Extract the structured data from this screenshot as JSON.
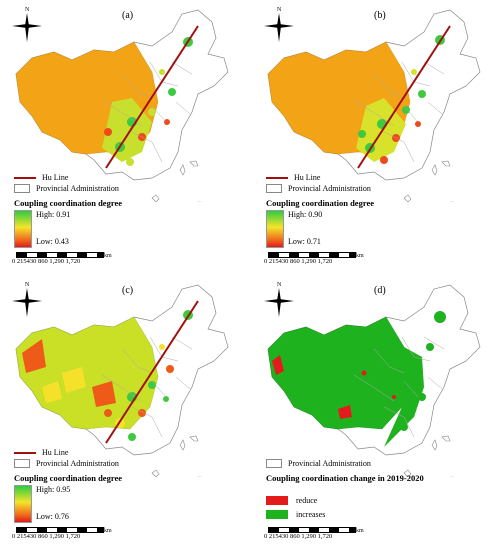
{
  "north_label": "N",
  "panels": {
    "a": {
      "letter": "(a)",
      "hu_line": "Hu Line",
      "admin": "Provincial Administration",
      "legend_title": "Coupling coordination degree",
      "high": "High: 0.91",
      "low": "Low: 0.43",
      "colors": {
        "west": "#f3a316",
        "high": "#3ec93e",
        "mid": "#c8df2d",
        "low": "#ee4a1a"
      }
    },
    "b": {
      "letter": "(b)",
      "hu_line": "Hu Line",
      "admin": "Provincial Administration",
      "legend_title": "Coupling coordination degree",
      "high": "High: 0.90",
      "low": "Low: 0.71",
      "colors": {
        "west": "#f3a316",
        "high": "#3ec93e",
        "mid": "#d8e22a",
        "low": "#ee4a1a"
      }
    },
    "c": {
      "letter": "(c)",
      "hu_line": "Hu Line",
      "admin": "Provincial Administration",
      "legend_title": "Coupling coordination degree",
      "high": "High: 0.95",
      "low": "Low: 0.76",
      "colors": {
        "west": "#c9e027",
        "high": "#3ec93e",
        "mid": "#f5e12a",
        "low": "#ee5a18"
      }
    },
    "d": {
      "letter": "(d)",
      "admin": "Provincial Administration",
      "legend_title": "Coupling coordination change in 2019-2020",
      "reduce": "reduce",
      "increases": "increases",
      "colors": {
        "increase": "#1fb21f",
        "reduce": "#e51b1b"
      }
    }
  },
  "scale": {
    "numbers": "0  215430      860    1,290   1,720",
    "unit": "km"
  }
}
